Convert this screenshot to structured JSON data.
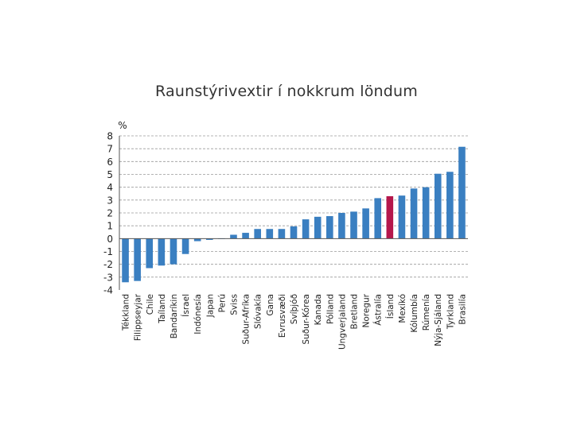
{
  "chart_data": {
    "type": "bar",
    "title": "Raunstýrivextir í nokkrum löndum",
    "ylabel": "%",
    "ylim": [
      -4,
      8
    ],
    "yticks": [
      -4,
      -3,
      -2,
      -1,
      0,
      1,
      2,
      3,
      4,
      5,
      6,
      7,
      8
    ],
    "grid": "horizontal-dashed",
    "colors": {
      "default": "#3a7fc1",
      "highlight": "#b5174b",
      "grid": "#9a9a9a",
      "axis": "#555555"
    },
    "highlight_category": "Ísland",
    "categories": [
      "Tékkland",
      "Filippseyjar",
      "Chile",
      "Taíland",
      "Bandaríkin",
      "Ísrael",
      "Indónesía",
      "Japan",
      "Perú",
      "Sviss",
      "Suður-Afríka",
      "Slóvakía",
      "Gana",
      "Evrusvæði",
      "Svíþjóð",
      "Suður-Kórea",
      "Kanada",
      "Pólland",
      "Ungverjaland",
      "Bretland",
      "Noregur",
      "Ástralía",
      "Ísland",
      "Mexíkó",
      "Kólumbía",
      "Rúmenía",
      "Nýja-Sjáland",
      "Tyrkland",
      "Brasilía"
    ],
    "values": [
      -3.4,
      -3.3,
      -2.3,
      -2.1,
      -2.0,
      -1.2,
      -0.2,
      -0.1,
      0.0,
      0.3,
      0.45,
      0.75,
      0.75,
      0.75,
      0.95,
      1.5,
      1.7,
      1.75,
      2.0,
      2.1,
      2.35,
      3.15,
      3.3,
      3.35,
      3.9,
      4.0,
      5.05,
      5.2,
      7.15
    ]
  }
}
